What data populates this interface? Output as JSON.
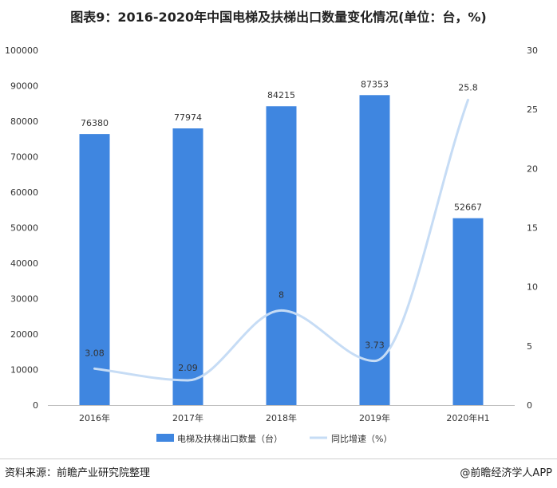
{
  "title": "图表9：2016-2020年中国电梯及扶梯出口数量变化情况(单位：台，%)",
  "source": "资料来源：前瞻产业研究院整理",
  "brand": "@前瞻经济学人APP",
  "colors": {
    "bar": "#3f86e0",
    "line": "#c6dcf5",
    "axis": "#bfbfbf"
  },
  "chart_data": {
    "type": "bar",
    "categories": [
      "2016年",
      "2017年",
      "2018年",
      "2019年",
      "2020年H1"
    ],
    "series": [
      {
        "name": "电梯及扶梯出口数量（台）",
        "type": "bar",
        "axis": "left",
        "values": [
          76380,
          77974,
          84215,
          87353,
          52667
        ],
        "labels": [
          "76380",
          "77974",
          "84215",
          "87353",
          "52667"
        ]
      },
      {
        "name": "同比增速（%）",
        "type": "line",
        "axis": "right",
        "smooth": true,
        "values": [
          3.08,
          2.09,
          8,
          3.73,
          25.8
        ],
        "labels": [
          "3.08",
          "2.09",
          "8",
          "3.73",
          "25.8"
        ]
      }
    ],
    "left_axis": {
      "ylim": [
        0,
        100000
      ],
      "ticks": [
        "0",
        "10000",
        "20000",
        "30000",
        "40000",
        "50000",
        "60000",
        "70000",
        "80000",
        "90000",
        "100000"
      ]
    },
    "right_axis": {
      "ylim": [
        0,
        30
      ],
      "ticks": [
        "0",
        "5",
        "10",
        "15",
        "20",
        "25",
        "30"
      ]
    },
    "legend_position": "bottom",
    "grid": false
  }
}
